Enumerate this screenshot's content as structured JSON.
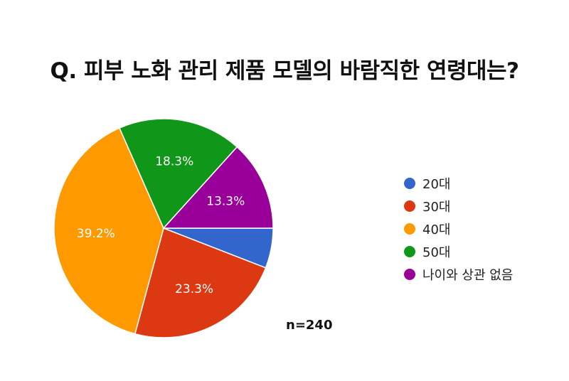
{
  "chart_data": {
    "type": "pie",
    "title": "Q. 피부 노화 관리 제품 모델의 바람직한 연령대는?",
    "note": "n=240",
    "legend_position": "right",
    "slices": [
      {
        "label": "20대",
        "value": 5.9,
        "display": "",
        "color": "#3366cc"
      },
      {
        "label": "30대",
        "value": 23.3,
        "display": "23.3%",
        "color": "#dc3912"
      },
      {
        "label": "40대",
        "value": 39.2,
        "display": "39.2%",
        "color": "#ff9900"
      },
      {
        "label": "50대",
        "value": 18.3,
        "display": "18.3%",
        "color": "#109618"
      },
      {
        "label": "나이와 상관 없음",
        "value": 13.3,
        "display": "13.3%",
        "color": "#990099"
      }
    ]
  }
}
